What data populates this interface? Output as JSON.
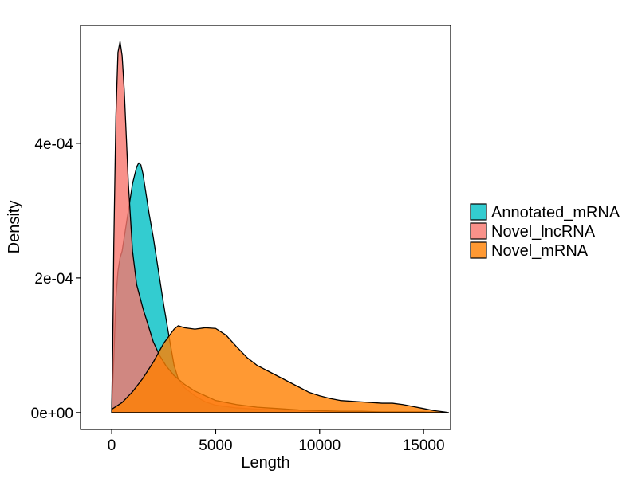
{
  "chart_data": {
    "type": "area",
    "subtype": "density",
    "title": "",
    "xlabel": "Length",
    "ylabel": "Density",
    "xlim": [
      -1500,
      16300
    ],
    "ylim": [
      -2.5e-05,
      0.000575
    ],
    "x_ticks": [
      0,
      5000,
      10000,
      15000
    ],
    "x_tick_labels": [
      "0",
      "5000",
      "10000",
      "15000"
    ],
    "y_ticks": [
      0,
      0.0002,
      0.0004
    ],
    "y_tick_labels": [
      "0e+00",
      "2e-04",
      "4e-04"
    ],
    "grid": false,
    "legend": "right",
    "series": [
      {
        "name": "Annotated_mRNA",
        "color": "#00BFC4",
        "x": [
          0,
          100,
          200,
          300,
          400,
          500,
          600,
          800,
          1000,
          1200,
          1300,
          1400,
          1500,
          1600,
          1800,
          2000,
          2200,
          2500,
          2800,
          3000,
          3200,
          3500,
          4000,
          4500,
          5000,
          6000,
          7000,
          8000,
          9000,
          10000,
          11000,
          12000,
          13000,
          14000,
          15000,
          16000
        ],
        "y": [
          5e-06,
          8e-05,
          0.00017,
          0.00021,
          0.00023,
          0.00024,
          0.00026,
          0.0003,
          0.00034,
          0.000365,
          0.000371,
          0.000368,
          0.000355,
          0.000335,
          0.000295,
          0.00026,
          0.00022,
          0.00016,
          0.000105,
          7e-05,
          5e-05,
          3.7e-05,
          2.5e-05,
          1.6e-05,
          1.1e-05,
          7e-06,
          5e-06,
          4e-06,
          3e-06,
          2e-06,
          2e-06,
          1e-06,
          1e-06,
          1e-06,
          1e-06,
          0.0
        ]
      },
      {
        "name": "Novel_lncRNA",
        "color": "#F8766D",
        "x": [
          0,
          50,
          100,
          200,
          300,
          400,
          500,
          600,
          700,
          800,
          1000,
          1200,
          1500,
          1800,
          2000,
          2300,
          2600,
          3000,
          3500,
          4000,
          4500,
          5000,
          6000,
          7000,
          8000,
          9000,
          10000,
          11000,
          12000,
          13000,
          14000,
          15000,
          16000
        ],
        "y": [
          1e-05,
          0.0001,
          0.00025,
          0.00044,
          0.000535,
          0.000551,
          0.00053,
          0.00048,
          0.00041,
          0.00034,
          0.00024,
          0.00019,
          0.000155,
          0.000125,
          0.000105,
          8.5e-05,
          7e-05,
          5.5e-05,
          4.2e-05,
          3.2e-05,
          2.5e-05,
          1.8e-05,
          1.2e-05,
          8e-06,
          6e-06,
          4e-06,
          3e-06,
          2e-06,
          2e-06,
          1e-06,
          1e-06,
          1e-06,
          0.0
        ]
      },
      {
        "name": "Novel_mRNA",
        "color": "#FF7F00",
        "x": [
          0,
          500,
          1000,
          1500,
          2000,
          2500,
          3000,
          3200,
          3500,
          4000,
          4500,
          5000,
          5500,
          6000,
          6500,
          7000,
          7500,
          8000,
          8500,
          9000,
          9500,
          10000,
          10500,
          11000,
          12000,
          13000,
          13500,
          14000,
          14500,
          15000,
          15500,
          16000,
          16200
        ],
        "y": [
          5e-06,
          1.5e-05,
          3.1e-05,
          5.1e-05,
          7.5e-05,
          0.000103,
          0.000124,
          0.000129,
          0.000126,
          0.000124,
          0.000126,
          0.000125,
          0.000115,
          9.8e-05,
          8.2e-05,
          7e-05,
          6.2e-05,
          5.4e-05,
          4.6e-05,
          3.8e-05,
          3e-05,
          2.5e-05,
          2.1e-05,
          1.8e-05,
          1.6e-05,
          1.4e-05,
          1.4e-05,
          1.2e-05,
          9e-06,
          6e-06,
          3e-06,
          1e-06,
          0.0
        ]
      }
    ]
  }
}
